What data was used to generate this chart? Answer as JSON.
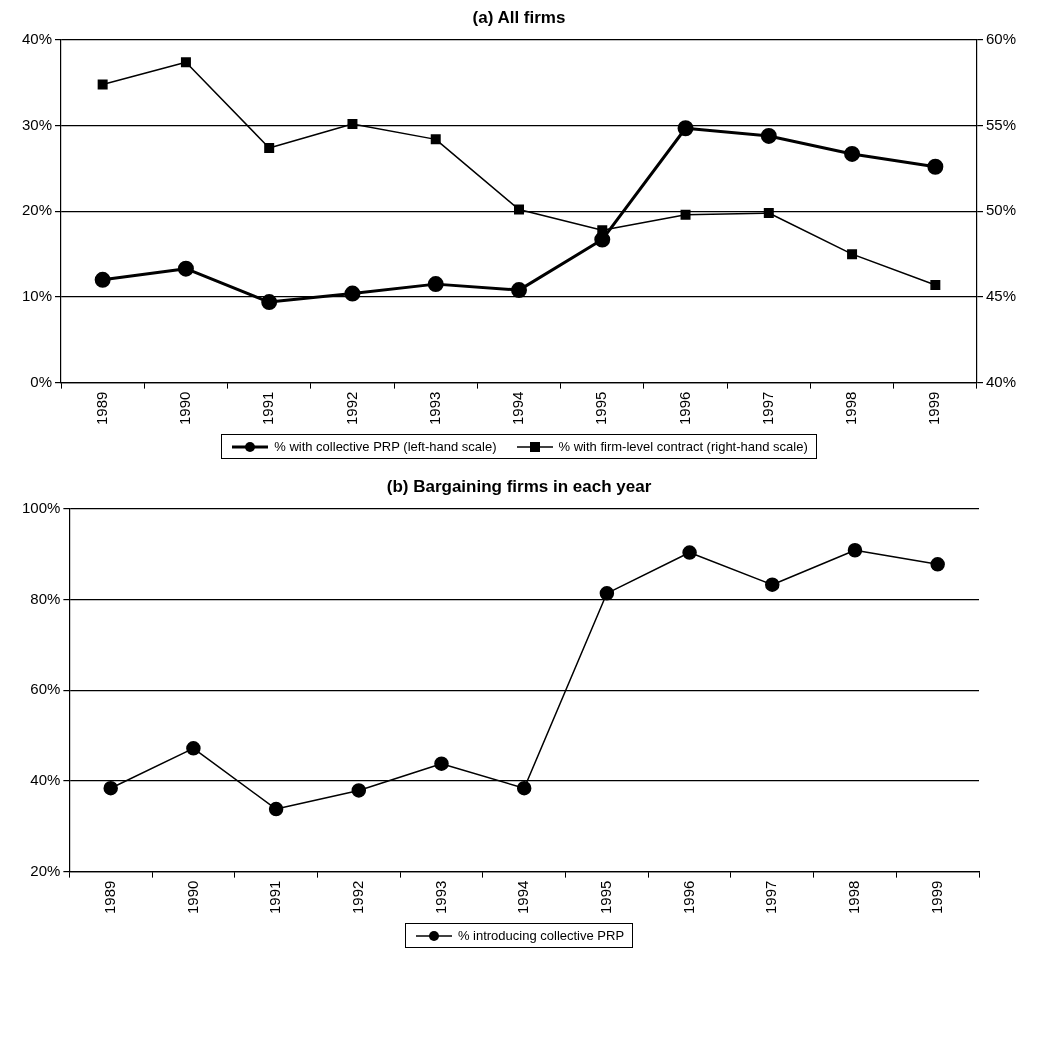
{
  "chart_data": [
    {
      "type": "line",
      "title": "(a) All firms",
      "categories": [
        "1989",
        "1990",
        "1991",
        "1992",
        "1993",
        "1994",
        "1995",
        "1996",
        "1997",
        "1998",
        "1999"
      ],
      "series": [
        {
          "name": "% with collective PRP (left-hand scale)",
          "color": "#000000",
          "marker": "circle",
          "values": [
            12.0,
            13.3,
            9.4,
            10.4,
            11.5,
            10.8,
            16.7,
            29.7,
            28.8,
            26.7,
            25.2
          ]
        },
        {
          "name": "% with firm-level contract (right-hand scale)",
          "color": "#000000",
          "marker": "square",
          "axis": "y2",
          "values": [
            57.4,
            58.7,
            53.7,
            55.1,
            54.2,
            50.1,
            48.9,
            49.8,
            49.9,
            47.5,
            45.7
          ]
        }
      ],
      "ylim": [
        0,
        40
      ],
      "yticks": [
        {
          "value": 0,
          "label": "0%"
        },
        {
          "value": 10,
          "label": "10%"
        },
        {
          "value": 20,
          "label": "20%"
        },
        {
          "value": 30,
          "label": "30%"
        },
        {
          "value": 40,
          "label": "40%"
        }
      ],
      "y2lim": [
        40,
        60
      ],
      "y2ticks": [
        {
          "value": 40,
          "label": "40%"
        },
        {
          "value": 45,
          "label": "45%"
        },
        {
          "value": 50,
          "label": "50%"
        },
        {
          "value": 55,
          "label": "55%"
        },
        {
          "value": 60,
          "label": "60%"
        }
      ],
      "grid": "y",
      "legend": "bottom"
    },
    {
      "type": "line",
      "title": "(b) Bargaining firms in each year",
      "categories": [
        "1989",
        "1990",
        "1991",
        "1992",
        "1993",
        "1994",
        "1995",
        "1996",
        "1997",
        "1998",
        "1999"
      ],
      "series": [
        {
          "name": "% introducing collective PRP",
          "color": "#000000",
          "marker": "circle",
          "values": [
            38.4,
            47.2,
            33.8,
            37.9,
            43.8,
            38.4,
            81.4,
            90.4,
            83.3,
            90.9,
            87.8
          ]
        }
      ],
      "ylim": [
        20,
        100
      ],
      "yticks": [
        {
          "value": 20,
          "label": "20%"
        },
        {
          "value": 40,
          "label": "40%"
        },
        {
          "value": 60,
          "label": "60%"
        },
        {
          "value": 80,
          "label": "80%"
        },
        {
          "value": 100,
          "label": "100%"
        }
      ],
      "grid": "y",
      "legend": "bottom"
    }
  ]
}
